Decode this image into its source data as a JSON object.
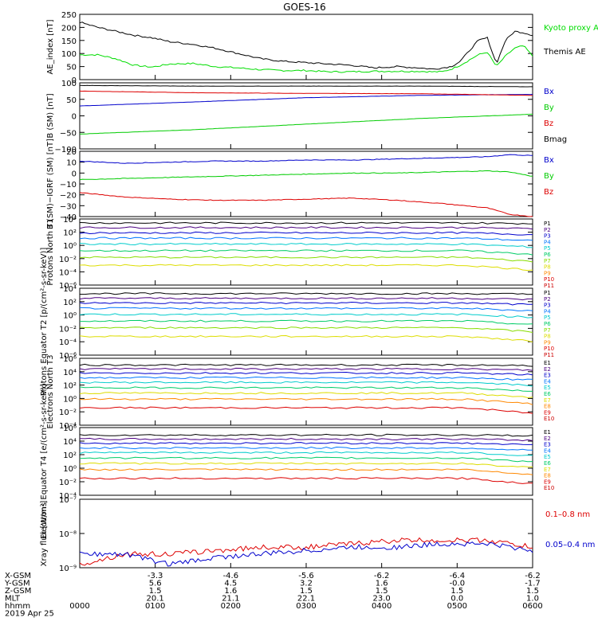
{
  "chart_data": [
    {
      "type": "line",
      "title": "GOES-16",
      "ylabel": "AE_index [nT]",
      "ylim": [
        0,
        250
      ],
      "yticks": [
        "0",
        "50",
        "100",
        "150",
        "200",
        "250"
      ],
      "grid": false,
      "legend_position": "right",
      "series": [
        {
          "name": "Kyoto proxy AE",
          "color": "#00dd00",
          "x": [
            0,
            0.04,
            0.08,
            0.12,
            0.16,
            0.2,
            0.25,
            0.3,
            0.35,
            0.4,
            0.45,
            0.5,
            0.55,
            0.6,
            0.65,
            0.7,
            0.75,
            0.78,
            0.8,
            0.82,
            0.84,
            0.86,
            0.88,
            0.9,
            0.92,
            0.94,
            0.96,
            0.98,
            1.0
          ],
          "values": [
            95,
            95,
            80,
            55,
            48,
            60,
            62,
            50,
            45,
            38,
            35,
            35,
            30,
            30,
            32,
            32,
            32,
            30,
            30,
            40,
            55,
            75,
            95,
            105,
            50,
            90,
            120,
            130,
            90
          ]
        },
        {
          "name": "Themis AE",
          "color": "#000000",
          "x": [
            0,
            0.04,
            0.08,
            0.12,
            0.16,
            0.2,
            0.25,
            0.3,
            0.35,
            0.4,
            0.45,
            0.5,
            0.55,
            0.6,
            0.65,
            0.7,
            0.75,
            0.78,
            0.8,
            0.82,
            0.84,
            0.86,
            0.88,
            0.9,
            0.92,
            0.94,
            0.96,
            0.98,
            1.0
          ],
          "values": [
            220,
            200,
            185,
            170,
            160,
            145,
            135,
            120,
            100,
            80,
            70,
            65,
            60,
            55,
            45,
            50,
            45,
            40,
            45,
            50,
            70,
            110,
            150,
            160,
            60,
            150,
            185,
            180,
            170
          ]
        }
      ]
    },
    {
      "type": "line",
      "ylabel": "B (SM) [nT]",
      "ylim": [
        -100,
        100
      ],
      "yticks": [
        "−100",
        "−50",
        "0",
        "50",
        "100"
      ],
      "grid": false,
      "series": [
        {
          "name": "Bx",
          "color": "#0000cc",
          "x": [
            0,
            0.25,
            0.5,
            0.75,
            1.0
          ],
          "values": [
            30,
            42,
            55,
            62,
            65
          ]
        },
        {
          "name": "By",
          "color": "#00cc00",
          "x": [
            0,
            0.25,
            0.5,
            0.75,
            1.0
          ],
          "values": [
            -55,
            -42,
            -25,
            -8,
            5
          ]
        },
        {
          "name": "Bz",
          "color": "#dd0000",
          "x": [
            0,
            0.25,
            0.5,
            0.75,
            1.0
          ],
          "values": [
            75,
            70,
            68,
            67,
            62
          ]
        },
        {
          "name": "Bmag",
          "color": "#000000",
          "x": [
            0,
            0.25,
            0.5,
            0.75,
            1.0
          ],
          "values": [
            92,
            90,
            90,
            90,
            88
          ]
        }
      ]
    },
    {
      "type": "line",
      "ylabel": "B (SM)−IGRF (SM) [nT]",
      "ylim": [
        -40,
        20
      ],
      "yticks": [
        "−40",
        "−30",
        "−20",
        "−10",
        "0",
        "10",
        "20"
      ],
      "grid": false,
      "series": [
        {
          "name": "Bx",
          "color": "#0000cc",
          "x": [
            0,
            0.1,
            0.2,
            0.3,
            0.4,
            0.5,
            0.6,
            0.7,
            0.8,
            0.9,
            0.95,
            1.0
          ],
          "values": [
            11,
            9,
            10,
            11,
            11,
            12,
            12,
            13,
            14,
            15,
            17,
            16
          ]
        },
        {
          "name": "By",
          "color": "#00cc00",
          "x": [
            0,
            0.1,
            0.2,
            0.3,
            0.4,
            0.5,
            0.6,
            0.7,
            0.8,
            0.9,
            0.95,
            1.0
          ],
          "values": [
            -6,
            -5,
            -4,
            -3,
            -2,
            -1,
            0,
            0,
            1,
            2,
            1,
            -3
          ]
        },
        {
          "name": "Bz",
          "color": "#dd0000",
          "x": [
            0,
            0.1,
            0.2,
            0.3,
            0.4,
            0.5,
            0.6,
            0.7,
            0.8,
            0.9,
            0.95,
            1.0
          ],
          "values": [
            -18,
            -22,
            -24,
            -25,
            -25,
            -24,
            -23,
            -25,
            -28,
            -32,
            -38,
            -40
          ]
        }
      ]
    },
    {
      "type": "line",
      "ylabel": "Protons North T1",
      "yscale": "log",
      "ylim": [
        -6,
        4
      ],
      "yticks": [
        "10⁻⁶",
        "10⁻⁴",
        "10⁻²",
        "10⁰",
        "10²",
        "10⁴"
      ],
      "grid": false,
      "series": [
        {
          "name": "P1",
          "color": "#000000",
          "level": 3.4
        },
        {
          "name": "P2",
          "color": "#4b0082",
          "level": 2.7
        },
        {
          "name": "P3",
          "color": "#0000cc",
          "level": 1.9
        },
        {
          "name": "P4",
          "color": "#0077ff",
          "level": 1.1
        },
        {
          "name": "P5",
          "color": "#00cccc",
          "level": 0.2
        },
        {
          "name": "P6",
          "color": "#00cc66",
          "level": -0.8
        },
        {
          "name": "P7",
          "color": "#88dd00",
          "level": -1.8
        },
        {
          "name": "P8",
          "color": "#dddd00",
          "level": -3.0
        },
        {
          "name": "P9",
          "color": "#ff8800",
          "level": null
        },
        {
          "name": "P10",
          "color": "#dd0000",
          "level": null
        },
        {
          "name": "P11",
          "color": "#cc0000",
          "level": null
        }
      ]
    },
    {
      "type": "line",
      "ylabel": "Protons Equator T2 [p/(cm²-s-sr-keV)]",
      "yscale": "log",
      "ylim": [
        -6,
        4
      ],
      "yticks": [
        "10⁻⁶",
        "10⁻⁴",
        "10⁻²",
        "10⁰",
        "10²",
        "10⁴"
      ],
      "grid": false,
      "series": [
        {
          "name": "P1",
          "color": "#000000",
          "level": 3.2
        },
        {
          "name": "P2",
          "color": "#4b0082",
          "level": 2.5
        },
        {
          "name": "P3",
          "color": "#0000cc",
          "level": 1.8
        },
        {
          "name": "P4",
          "color": "#0077ff",
          "level": 1.0
        },
        {
          "name": "P5",
          "color": "#00cccc",
          "level": 0.1
        },
        {
          "name": "P6",
          "color": "#00cc66",
          "level": -0.9
        },
        {
          "name": "P7",
          "color": "#88dd00",
          "level": -1.9
        },
        {
          "name": "P8",
          "color": "#dddd00",
          "level": -3.2
        },
        {
          "name": "P9",
          "color": "#ff8800",
          "level": null
        },
        {
          "name": "P10",
          "color": "#dd0000",
          "level": null
        },
        {
          "name": "P11",
          "color": "#cc0000",
          "level": null
        }
      ]
    },
    {
      "type": "line",
      "ylabel": "Electrons North T3",
      "yscale": "log",
      "ylim": [
        -4,
        6
      ],
      "yticks": [
        "10⁻⁴",
        "10⁻²",
        "10⁰",
        "10²",
        "10⁴",
        "10⁶"
      ],
      "grid": false,
      "series": [
        {
          "name": "E1",
          "color": "#000000",
          "level": 5.0
        },
        {
          "name": "E2",
          "color": "#4b0082",
          "level": 4.4
        },
        {
          "name": "E3",
          "color": "#0000cc",
          "level": 3.8
        },
        {
          "name": "E4",
          "color": "#0077ff",
          "level": 3.1
        },
        {
          "name": "E5",
          "color": "#00cccc",
          "level": 2.4
        },
        {
          "name": "E6",
          "color": "#00cc66",
          "level": 1.6
        },
        {
          "name": "E7",
          "color": "#dddd00",
          "level": 0.8
        },
        {
          "name": "E8",
          "color": "#ff8800",
          "level": -0.1
        },
        {
          "name": "E9",
          "color": "#dd0000",
          "level": -1.4
        },
        {
          "name": "E10",
          "color": "#cc0000",
          "level": null
        }
      ]
    },
    {
      "type": "line",
      "ylabel": "Electrons Equator T4 [e/(cm²-s-sr-keV)]",
      "yscale": "log",
      "ylim": [
        -4,
        6
      ],
      "yticks": [
        "10⁻⁴",
        "10⁻²",
        "10⁰",
        "10²",
        "10⁴",
        "10⁶"
      ],
      "grid": false,
      "series": [
        {
          "name": "E1",
          "color": "#000000",
          "level": 4.9
        },
        {
          "name": "E2",
          "color": "#4b0082",
          "level": 4.3
        },
        {
          "name": "E3",
          "color": "#0000cc",
          "level": 3.7
        },
        {
          "name": "E4",
          "color": "#0077ff",
          "level": 3.0
        },
        {
          "name": "E5",
          "color": "#00cccc",
          "level": 2.3
        },
        {
          "name": "E6",
          "color": "#00cc66",
          "level": 1.5
        },
        {
          "name": "E7",
          "color": "#dddd00",
          "level": 0.7
        },
        {
          "name": "E8",
          "color": "#ff8800",
          "level": -0.2
        },
        {
          "name": "E9",
          "color": "#dd0000",
          "level": -1.5
        },
        {
          "name": "E10",
          "color": "#cc0000",
          "level": null
        }
      ]
    },
    {
      "type": "line",
      "ylabel": "Xray flux [W/m²]",
      "yscale": "log",
      "ylim": [
        -9,
        -7
      ],
      "yticks": [
        "10⁻⁹",
        "10⁻⁸",
        "10⁻⁷"
      ],
      "grid": false,
      "series": [
        {
          "name": "0.1–0.8 nm",
          "color": "#dd0000",
          "x": [
            0,
            0.1,
            0.2,
            0.3,
            0.4,
            0.5,
            0.6,
            0.7,
            0.8,
            0.9,
            1.0
          ],
          "values": [
            -8.9,
            -8.6,
            -8.6,
            -8.5,
            -8.4,
            -8.4,
            -8.3,
            -8.2,
            -8.2,
            -8.2,
            -8.4
          ]
        },
        {
          "name": "0.05–0.4 nm",
          "color": "#0000cc",
          "x": [
            0,
            0.1,
            0.2,
            0.3,
            0.4,
            0.5,
            0.6,
            0.7,
            0.8,
            0.9,
            1.0
          ],
          "values": [
            -8.6,
            -8.6,
            -8.9,
            -8.7,
            -8.6,
            -8.5,
            -8.4,
            -8.4,
            -8.3,
            -8.3,
            -8.5
          ]
        }
      ]
    }
  ],
  "xaxis": {
    "rows": [
      {
        "label": "X-GSM",
        "values": [
          "",
          "-3.3",
          "-4.6",
          "-5.6",
          "-6.2",
          "-6.4",
          "-6.2"
        ]
      },
      {
        "label": "Y-GSM",
        "values": [
          "",
          "5.6",
          "4.5",
          "3.2",
          "1.6",
          "-0.0",
          "-1.7"
        ]
      },
      {
        "label": "Z-GSM",
        "values": [
          "",
          "1.5",
          "1.6",
          "1.5",
          "1.5",
          "1.5",
          "1.5"
        ]
      },
      {
        "label": "MLT",
        "values": [
          "",
          "20.1",
          "21.1",
          "22.1",
          "23.0",
          "0.0",
          "1.0"
        ]
      },
      {
        "label": "hhmm",
        "values": [
          "0000",
          "0100",
          "0200",
          "0300",
          "0400",
          "0500",
          "0600"
        ]
      }
    ],
    "date": "2019 Apr 25"
  }
}
